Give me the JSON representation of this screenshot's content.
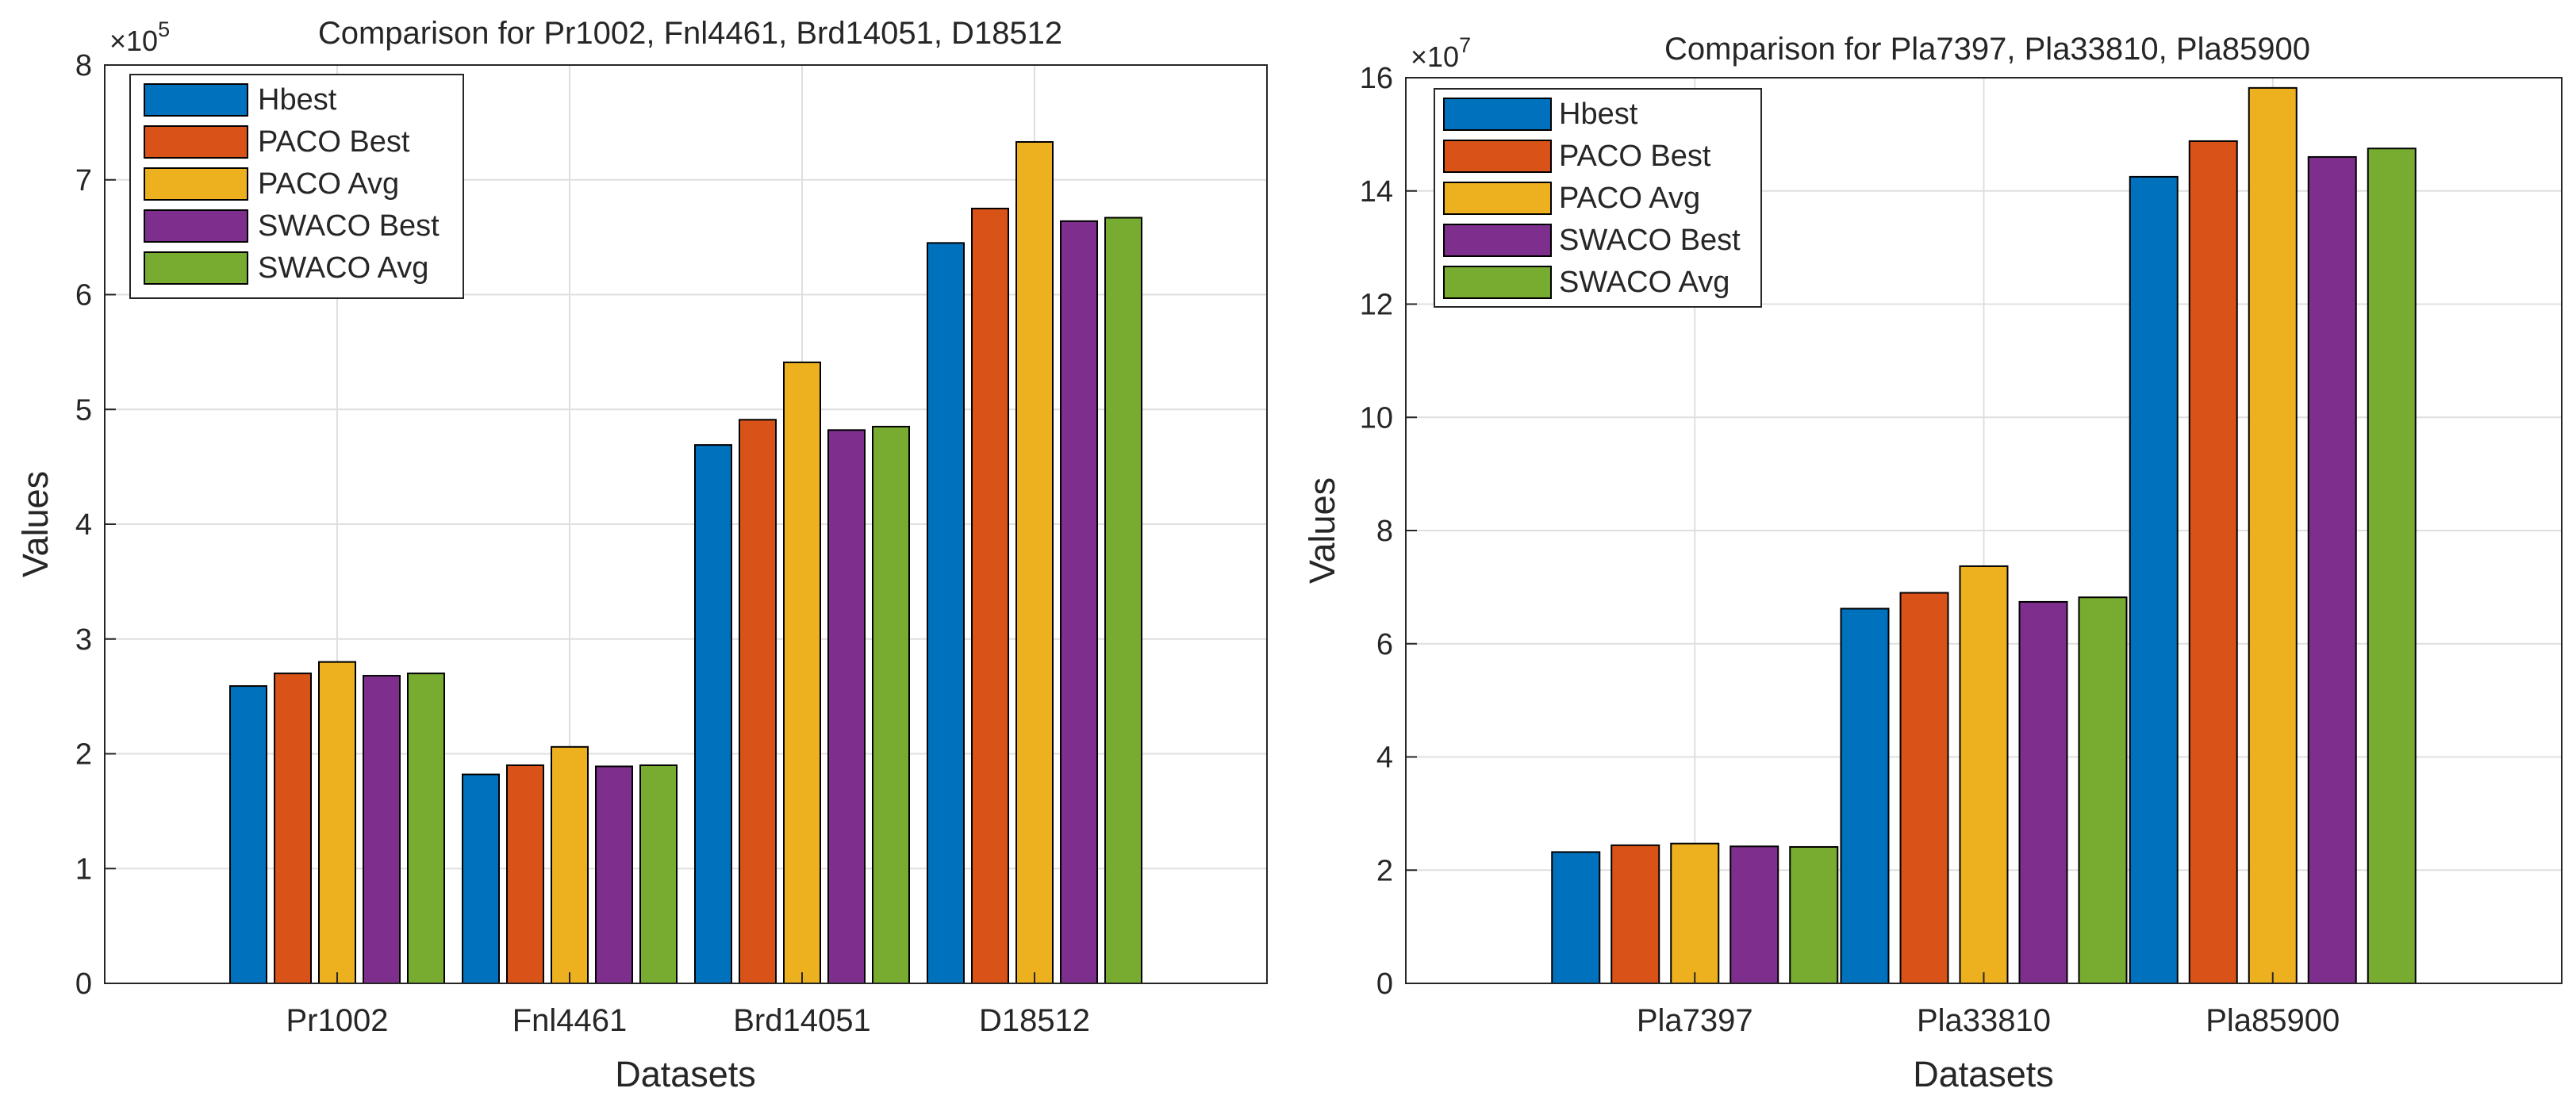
{
  "chart_data": [
    {
      "type": "bar",
      "title": "Comparison for Pr1002, Fnl4461, Brd14051, D18512",
      "xlabel": "Datasets",
      "ylabel": "Values",
      "exponent_base": "×10",
      "exponent_power": "5",
      "ylim": [
        0,
        8
      ],
      "yticks": [
        0,
        1,
        2,
        3,
        4,
        5,
        6,
        7,
        8
      ],
      "grid": true,
      "legend_position": "top-left",
      "categories": [
        "Pr1002",
        "Fnl4461",
        "Brd14051",
        "D18512"
      ],
      "series": [
        {
          "name": "Hbest",
          "values": [
            2.59,
            1.82,
            4.69,
            6.45
          ]
        },
        {
          "name": "PACO Best",
          "values": [
            2.7,
            1.9,
            4.91,
            6.75
          ]
        },
        {
          "name": "PACO Avg",
          "values": [
            2.8,
            2.06,
            5.41,
            7.33
          ]
        },
        {
          "name": "SWACO Best",
          "values": [
            2.68,
            1.89,
            4.82,
            6.64
          ]
        },
        {
          "name": "SWACO Avg",
          "values": [
            2.7,
            1.9,
            4.85,
            6.67
          ]
        }
      ]
    },
    {
      "type": "bar",
      "title": "Comparison for Pla7397, Pla33810, Pla85900",
      "xlabel": "Datasets",
      "ylabel": "Values",
      "exponent_base": "×10",
      "exponent_power": "7",
      "ylim": [
        0,
        16
      ],
      "yticks": [
        0,
        2,
        4,
        6,
        8,
        10,
        12,
        14,
        16
      ],
      "grid": true,
      "legend_position": "top-left",
      "categories": [
        "Pla7397",
        "Pla33810",
        "Pla85900"
      ],
      "series": [
        {
          "name": "Hbest",
          "values": [
            2.32,
            6.62,
            14.25
          ]
        },
        {
          "name": "PACO Best",
          "values": [
            2.44,
            6.9,
            14.88
          ]
        },
        {
          "name": "PACO Avg",
          "values": [
            2.47,
            7.37,
            15.82
          ]
        },
        {
          "name": "SWACO Best",
          "values": [
            2.42,
            6.74,
            14.6
          ]
        },
        {
          "name": "SWACO Avg",
          "values": [
            2.41,
            6.82,
            14.75
          ]
        }
      ]
    }
  ],
  "colors": {
    "series": [
      "#0072BD",
      "#D95319",
      "#EDB120",
      "#7E2F8E",
      "#77AC30"
    ],
    "grid": "#dfdfdf",
    "axis": "#262626"
  }
}
